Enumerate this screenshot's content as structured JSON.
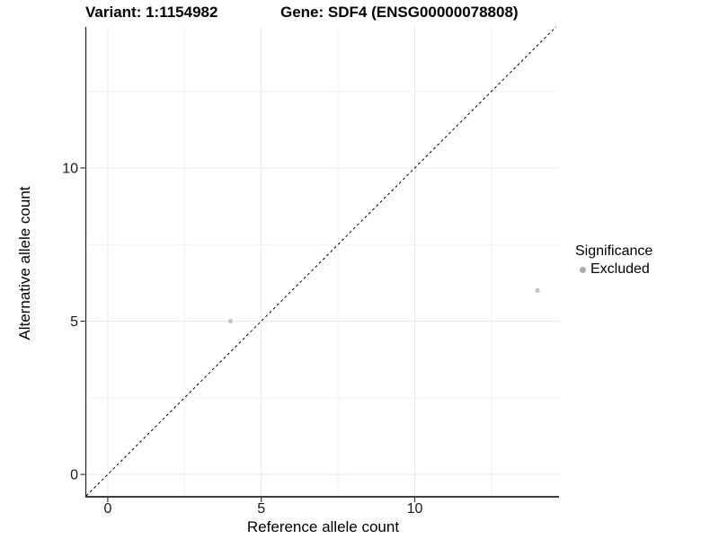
{
  "header": {
    "variant_title": "Variant: 1:1154982",
    "gene_title": "Gene: SDF4 (ENSG00000078808)"
  },
  "chart_data": {
    "type": "scatter",
    "xlabel": "Reference allele count",
    "ylabel": "Alternative allele count",
    "xlim": [
      -0.7,
      14.7
    ],
    "ylim": [
      -0.7,
      14.6
    ],
    "x_ticks": [
      0,
      5,
      10
    ],
    "y_ticks": [
      0,
      5,
      10
    ],
    "x_minor_ticks": [
      2.5,
      7.5,
      12.5
    ],
    "y_minor_ticks": [
      2.5,
      7.5,
      12.5
    ],
    "grid": true,
    "identity_line": {
      "style": "dashed",
      "from": -0.7,
      "to": 14.6,
      "slope": 1,
      "intercept": 0
    },
    "series": [
      {
        "name": "Excluded",
        "color": "#c4c4c4",
        "points": [
          {
            "x": 4,
            "y": 5
          },
          {
            "x": 14,
            "y": 6
          }
        ]
      }
    ],
    "legend": {
      "title": "Significance",
      "position": "right",
      "items": [
        {
          "label": "Excluded",
          "color": "#aaaaaa"
        }
      ]
    },
    "colors": {
      "background": "#ffffff",
      "grid_major": "#e8e8e8",
      "grid_minor": "#f3f3f3",
      "axis_line": "#222222",
      "tick": "#333333",
      "tick_label": "#1a1a1a",
      "identity_line": "#000000"
    }
  }
}
